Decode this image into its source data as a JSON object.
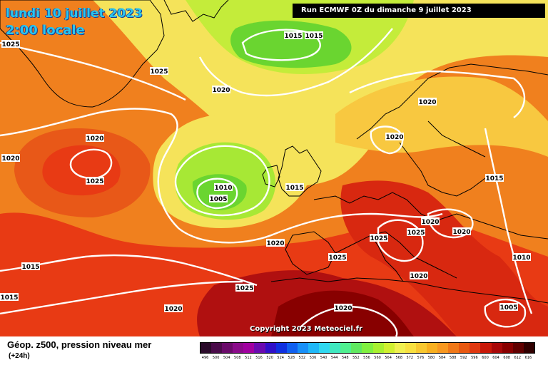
{
  "header": {
    "date": "lundi 10 juillet 2023",
    "time": "2:00 locale",
    "run": "Run ECMWF 0Z du dimanche 9 juillet 2023"
  },
  "map": {
    "copyright": "Copyright 2023 Meteociel.fr",
    "isobar_labels": [
      "1025",
      "1025",
      "1015",
      "1015",
      "1020",
      "1020",
      "1020",
      "1025",
      "1020",
      "1010",
      "1005",
      "1015",
      "1020",
      "1020",
      "1015",
      "1020",
      "1025",
      "1025",
      "1020",
      "1020",
      "1020",
      "1025",
      "1015",
      "1015",
      "1025",
      "1020",
      "1010",
      "1005"
    ]
  },
  "legend": {
    "title": "Géop. z500, pression niveau mer",
    "subtitle": "(+24h)",
    "scale_values": [
      "496",
      "500",
      "504",
      "508",
      "512",
      "516",
      "520",
      "524",
      "528",
      "532",
      "536",
      "540",
      "544",
      "548",
      "552",
      "556",
      "560",
      "564",
      "568",
      "572",
      "576",
      "580",
      "584",
      "588",
      "592",
      "596",
      "600",
      "604",
      "608",
      "612",
      "616"
    ],
    "scale_colors": [
      "#2a0a2a",
      "#4a0b4a",
      "#6a0a6a",
      "#8a0a8a",
      "#a000a0",
      "#6a0ab0",
      "#3010c8",
      "#1030e0",
      "#1060f0",
      "#1890f8",
      "#20b8f8",
      "#30d8f0",
      "#40e8c0",
      "#50f090",
      "#60e860",
      "#80f040",
      "#a8f030",
      "#d0f030",
      "#f0f050",
      "#f8e040",
      "#f8c830",
      "#f8b020",
      "#f89820",
      "#f07818",
      "#e85810",
      "#e03810",
      "#c81808",
      "#a80808",
      "#880000",
      "#600000",
      "#300000"
    ]
  }
}
